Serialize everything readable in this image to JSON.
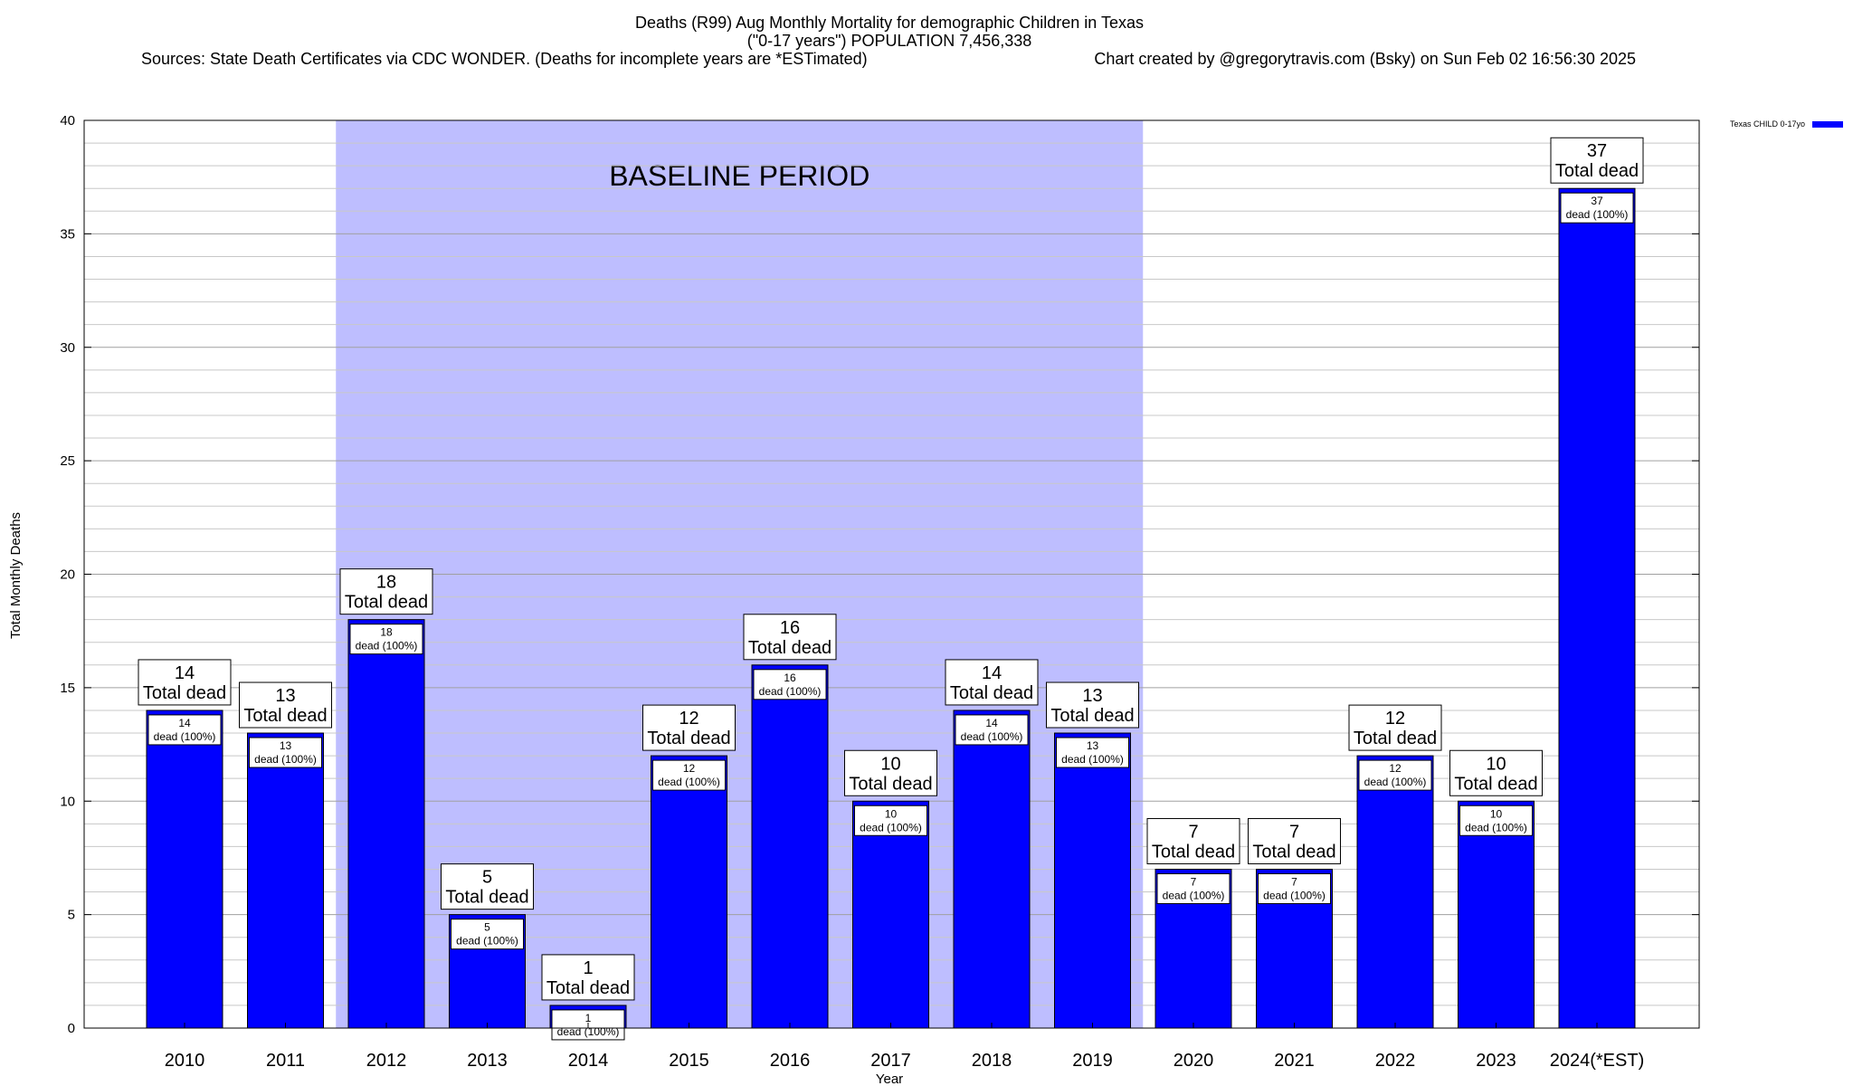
{
  "title": {
    "line1": "Deaths (R99) Aug Monthly Mortality for demographic Children in Texas",
    "line2": "(\"0-17 years\") POPULATION 7,456,338",
    "line3_left": "Sources: State Death Certificates via CDC WONDER. (Deaths for incomplete years are *ESTimated)",
    "line3_right": "Chart created by @gregorytravis.com (Bsky) on Sun Feb 02 16:56:30 2025"
  },
  "chart_data": {
    "type": "bar",
    "categories": [
      "2010",
      "2011",
      "2012",
      "2013",
      "2014",
      "2015",
      "2016",
      "2017",
      "2018",
      "2019",
      "2020",
      "2021",
      "2022",
      "2023",
      "2024(*EST)"
    ],
    "series": [
      {
        "name": "Texas CHILD 0-17yo",
        "values": [
          14,
          13,
          18,
          5,
          1,
          12,
          16,
          10,
          14,
          13,
          7,
          7,
          12,
          10,
          37
        ],
        "color": "#0000ff"
      }
    ],
    "xlabel": "Year",
    "ylabel": "Total Monthly Deaths",
    "ylim": [
      0,
      40
    ],
    "yticks": [
      "0",
      "5",
      "10",
      "15",
      "20",
      "25",
      "30",
      "35",
      "40"
    ],
    "grid": true,
    "legend_position": "top-right (outside plot)",
    "total_label": "Total dead",
    "inner_label": "dead (100%)",
    "baseline_band": {
      "label": "BASELINE PERIOD",
      "from_category": "2012",
      "to_category": "2019",
      "color": "#bebeff"
    }
  }
}
